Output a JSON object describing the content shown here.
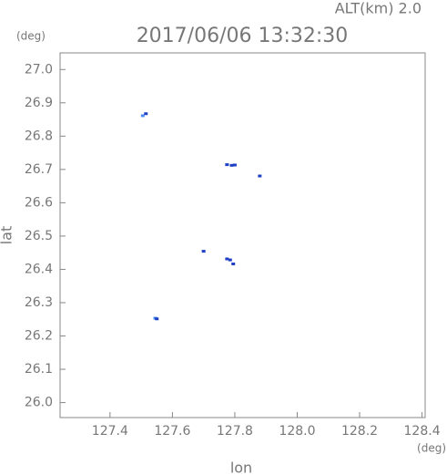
{
  "chart_data": {
    "type": "scatter",
    "title": "2017/06/06 13:32:30",
    "subtitle": "ALT(km) 2.0",
    "y_unit": "(deg)",
    "x_unit": "(deg)",
    "xlabel": "lon",
    "ylabel": "lat",
    "xlim": [
      127.24,
      128.41
    ],
    "ylim": [
      25.955,
      27.05
    ],
    "xticks": [
      127.4,
      127.6,
      127.8,
      {
        "value": 128,
        "label": "128.0"
      },
      128.2,
      128.4
    ],
    "yticks": [
      {
        "value": 26,
        "label": "26.0"
      },
      26.1,
      26.2,
      26.3,
      26.4,
      26.5,
      26.6,
      26.7,
      26.8,
      26.9,
      {
        "value": 27,
        "label": "27.0"
      }
    ],
    "series": [
      {
        "color": "#4a8cf2",
        "x": [
          127.505,
          127.545
        ],
        "values": [
          26.86,
          26.252
        ]
      },
      {
        "color": "#1f3fc4",
        "x": [
          127.515,
          127.775,
          127.79,
          127.8,
          127.88,
          127.7,
          127.775,
          127.785,
          127.795,
          127.55
        ],
        "values": [
          26.866,
          26.713,
          26.711,
          26.712,
          26.679,
          26.453,
          26.43,
          26.427,
          26.415,
          26.25
        ]
      }
    ]
  }
}
